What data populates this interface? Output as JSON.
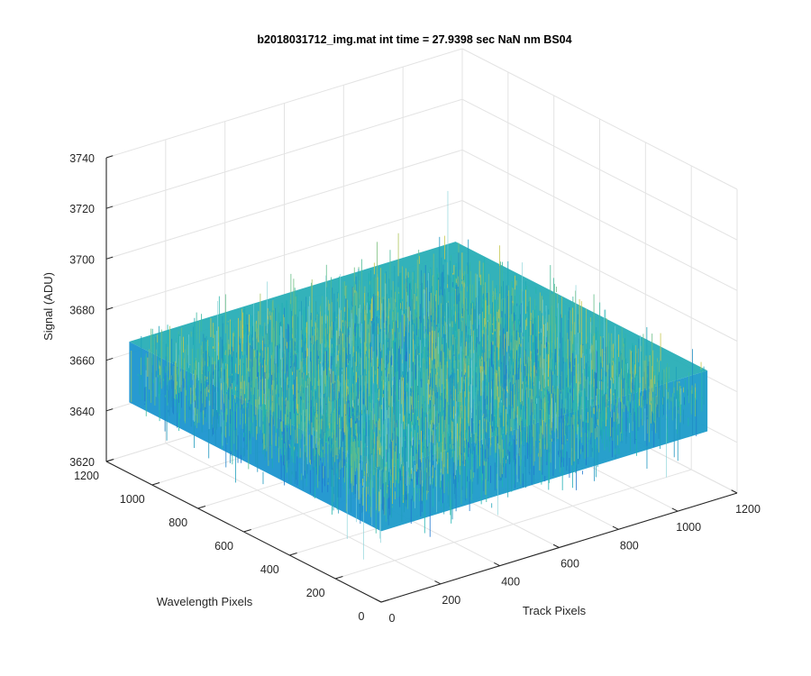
{
  "chart_data": {
    "type": "surface3d",
    "title": "b2018031712_img.mat int time = 27.9398 sec  NaN nm BS04",
    "xlabel": "Track Pixels",
    "ylabel": "Wavelength Pixels",
    "zlabel": "Signal (ADU)",
    "xlim": [
      0,
      1200
    ],
    "ylim": [
      0,
      1200
    ],
    "zlim": [
      3620,
      3740
    ],
    "xticks": [
      "0",
      "200",
      "400",
      "600",
      "800",
      "1000",
      "1200"
    ],
    "yticks": [
      "0",
      "200",
      "400",
      "600",
      "800",
      "1000",
      "1200"
    ],
    "zticks": [
      "3620",
      "3640",
      "3660",
      "3680",
      "3700",
      "3720",
      "3740"
    ],
    "data_extent": {
      "x": [
        0,
        1100
      ],
      "y": [
        0,
        1100
      ]
    },
    "signal_typical_range": [
      3640,
      3680
    ],
    "signal_mean_approx": 3660,
    "grid": true,
    "colormap": "parula",
    "colors": {
      "low": "#1f77d0",
      "mid": "#1fb6b0",
      "high": "#c8c850"
    }
  }
}
